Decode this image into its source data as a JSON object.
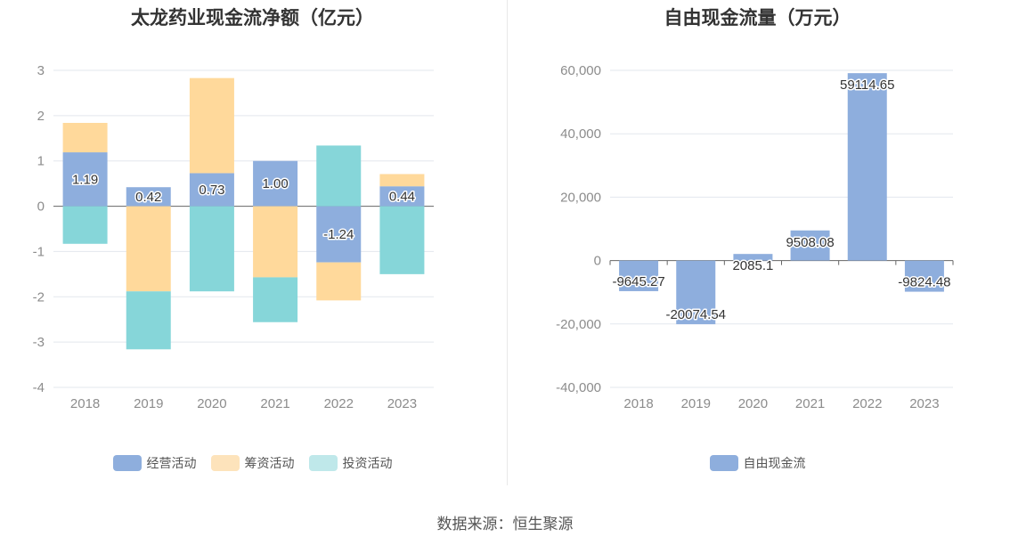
{
  "source_label": "数据来源：恒生聚源",
  "chart_data": [
    {
      "type": "bar",
      "stacked": true,
      "title": "太龙药业现金流净额（亿元）",
      "categories": [
        "2018",
        "2019",
        "2020",
        "2021",
        "2022",
        "2023"
      ],
      "ylim": [
        -4,
        3
      ],
      "yticks": [
        3,
        2,
        1,
        0,
        -1,
        -2,
        -3,
        -4
      ],
      "series": [
        {
          "name": "经营活动",
          "color": "#8eaedd",
          "values": [
            1.19,
            0.42,
            0.73,
            1.0,
            -1.24,
            0.44
          ],
          "labels": [
            "1.19",
            "0.42",
            "0.73",
            "1.00",
            "-1.24",
            "0.44"
          ]
        },
        {
          "name": "筹资活动",
          "color": "#ffd99b",
          "legend_color": "#fde3bb",
          "values": [
            0.65,
            -1.88,
            2.1,
            -1.57,
            -0.84,
            0.27
          ]
        },
        {
          "name": "投资活动",
          "color": "#86d6d9",
          "legend_color": "#bfe8ea",
          "values": [
            -0.83,
            -1.28,
            -1.88,
            -0.99,
            1.34,
            -1.5
          ]
        }
      ]
    },
    {
      "type": "bar",
      "title": "自由现金流量（万元）",
      "categories": [
        "2018",
        "2019",
        "2020",
        "2021",
        "2022",
        "2023"
      ],
      "ylim": [
        -40000,
        60000
      ],
      "yticks": [
        60000,
        40000,
        20000,
        0,
        -20000,
        -40000
      ],
      "ytick_labels": [
        "60,000",
        "40,000",
        "20,000",
        "0",
        "-20,000",
        "-40,000"
      ],
      "series": [
        {
          "name": "自由现金流",
          "color": "#8eaedd",
          "values": [
            -9645.27,
            -20074.54,
            2085.1,
            9508.08,
            59114.65,
            -9824.48
          ],
          "labels": [
            "-9645.27",
            "-20074.54",
            "2085.1",
            "9508.08",
            "59114.65",
            "-9824.48"
          ]
        }
      ]
    }
  ]
}
